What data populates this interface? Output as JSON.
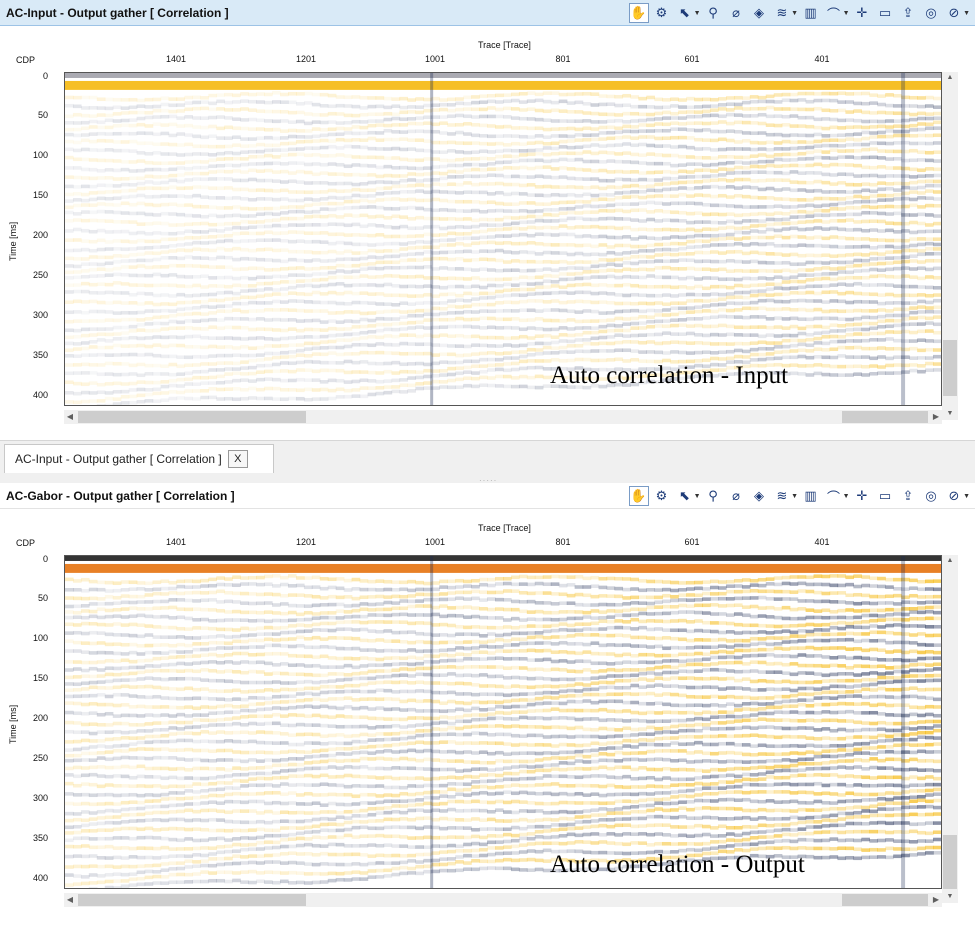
{
  "top": {
    "title": "AC-Input - Output gather [ Correlation ]",
    "annotation": "Auto correlation - Input",
    "amplitude": 0.6
  },
  "bottom": {
    "title": "AC-Gabor - Output gather [ Correlation ]",
    "annotation": "Auto correlation - Output",
    "amplitude": 1.0
  },
  "axes": {
    "x_label": "Trace [Trace]",
    "cdp_label": "CDP",
    "y_label": "Time [ms]",
    "x_ticks": [
      "1401",
      "1201",
      "1001",
      "801",
      "601",
      "401"
    ],
    "y_ticks": [
      "0",
      "50",
      "100",
      "150",
      "200",
      "250",
      "300",
      "350",
      "400"
    ]
  },
  "tab": {
    "label": "AC-Input - Output gather [ Correlation ]",
    "close": "X"
  },
  "toolbar_icons": [
    "pan-hand-icon",
    "settings-gear-icon",
    "select-arrow-icon",
    "zoom-magnifier-icon",
    "pick-probe-icon",
    "layers-icon",
    "wiggle-display-icon",
    "color-scale-icon",
    "spectrum-chart-icon",
    "crosshair-icon",
    "comment-icon",
    "export-image-icon",
    "snapshot-icon",
    "compass-icon"
  ],
  "colors": {
    "positive": "#f5b400",
    "positive_strong": "#c81e00",
    "negative": "#1c2a52",
    "header_active": "#d9eaf7"
  }
}
